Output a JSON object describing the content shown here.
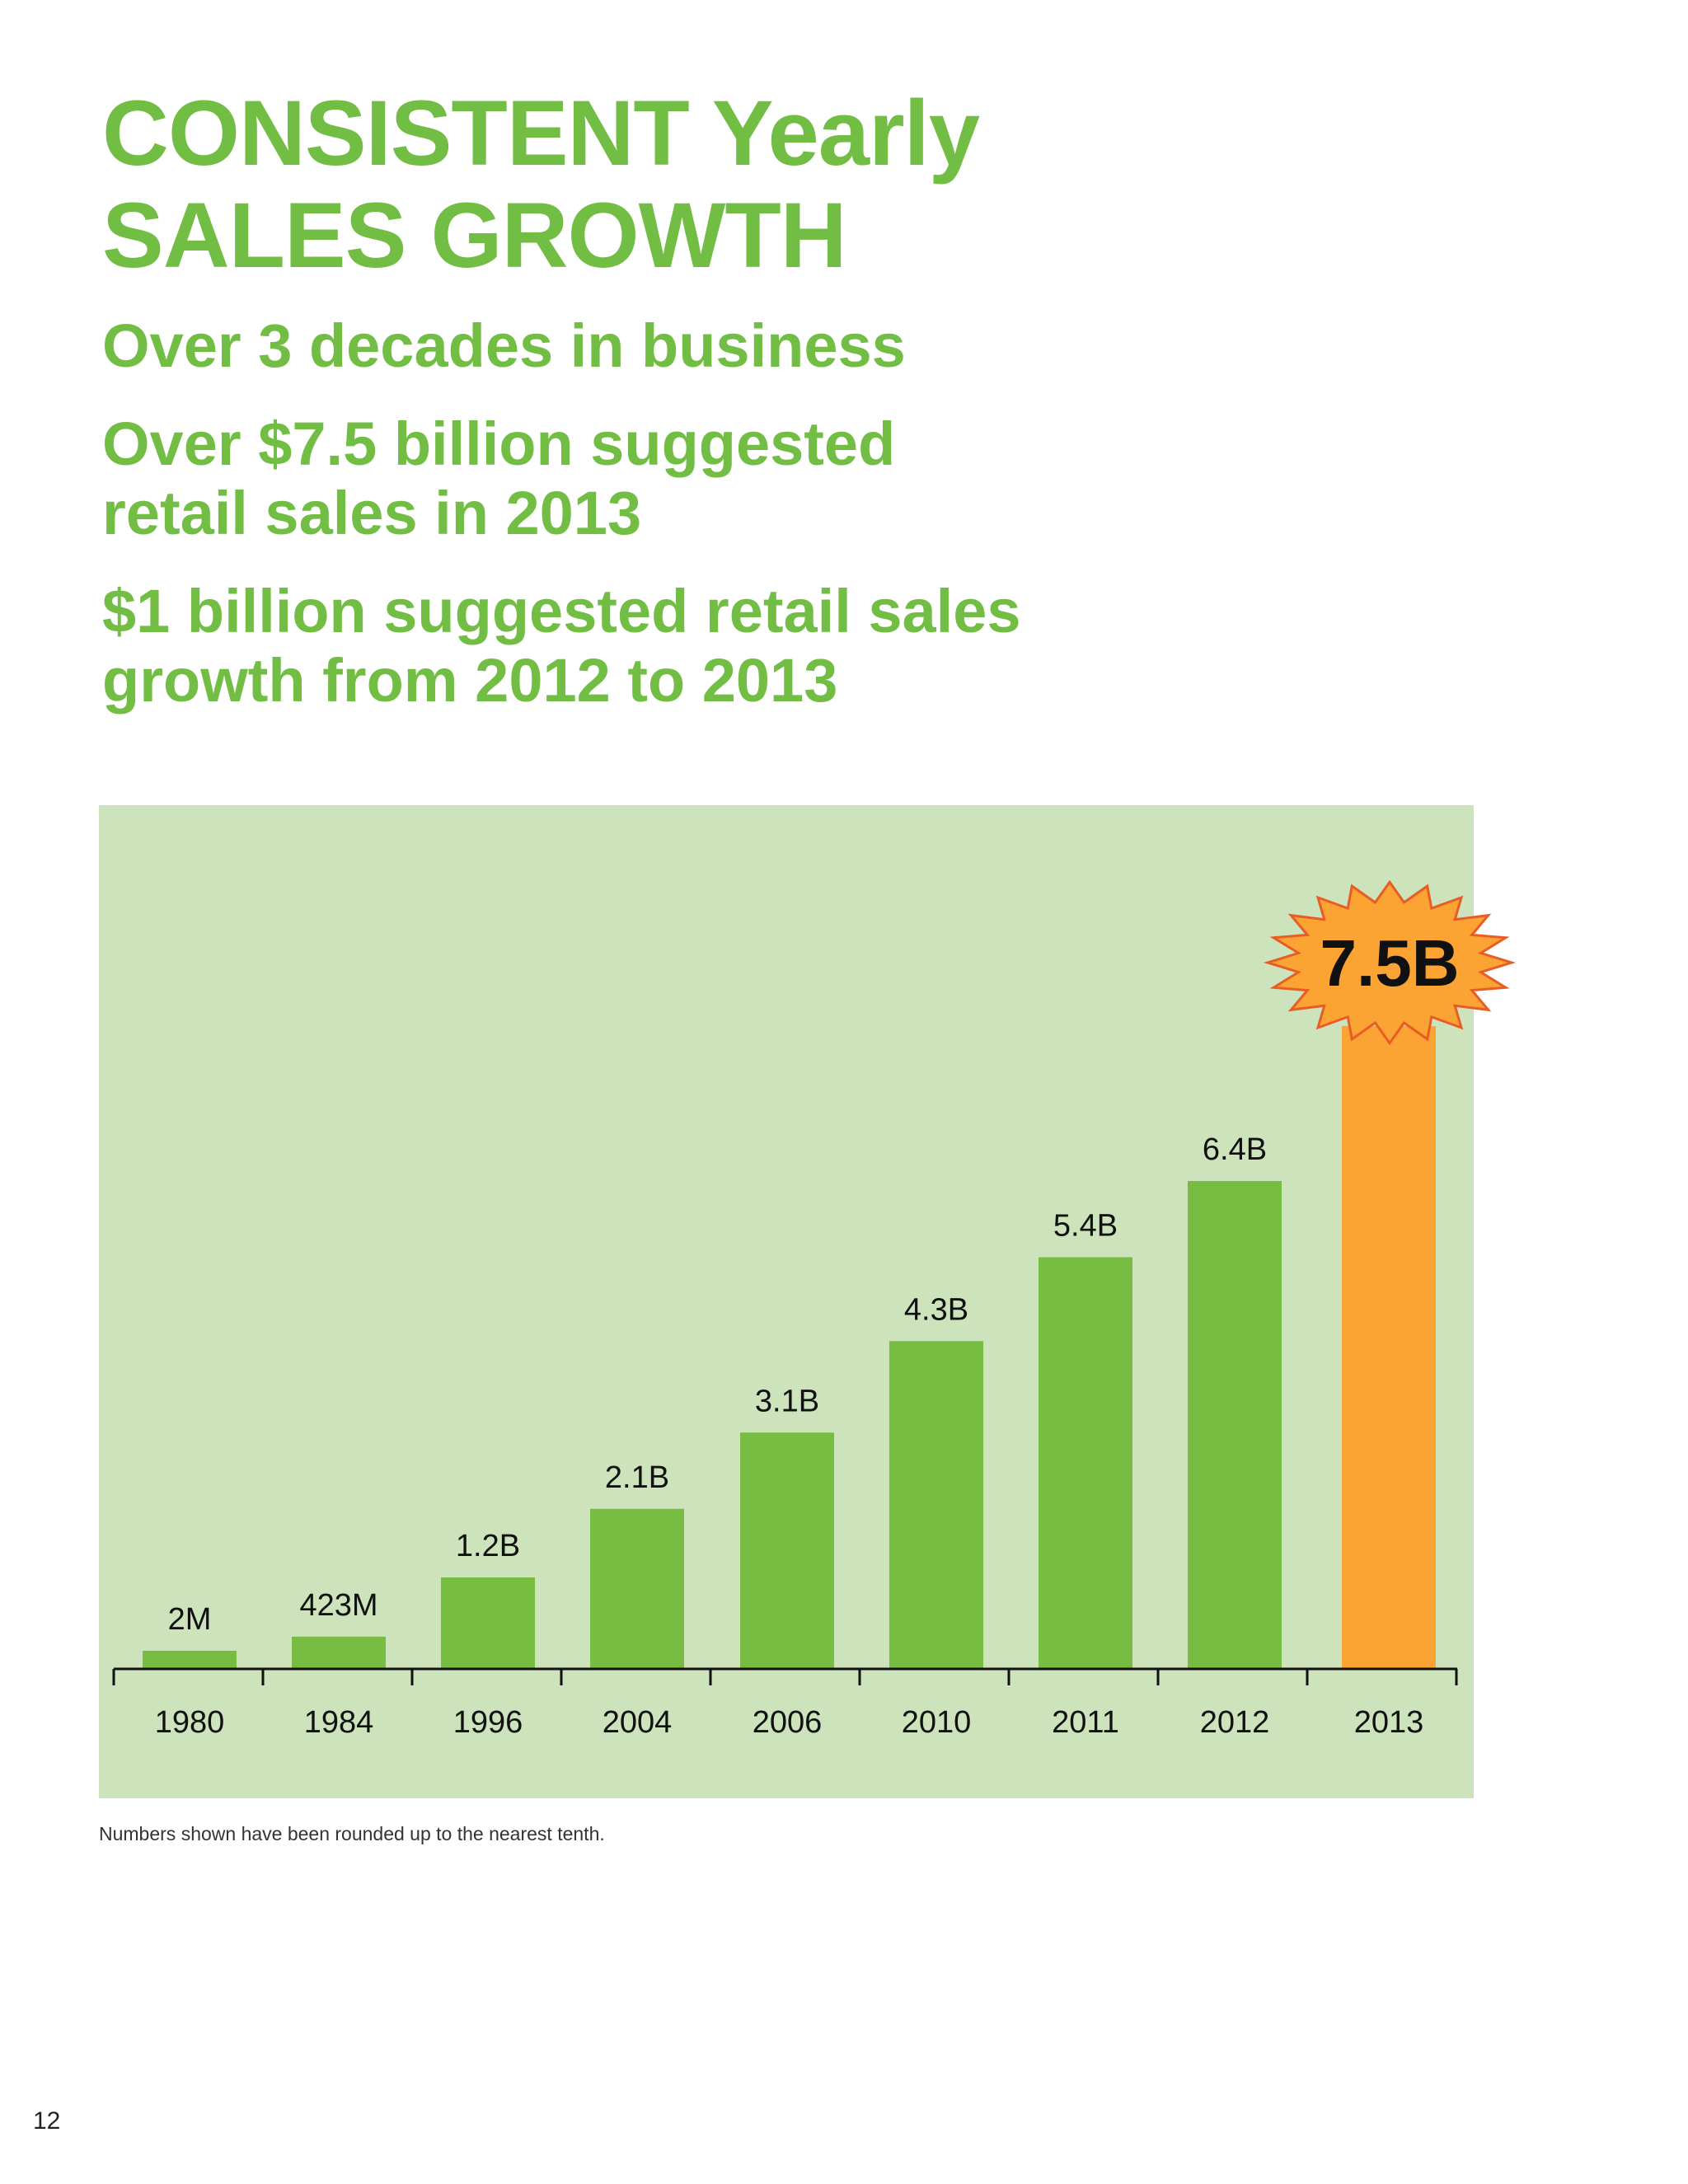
{
  "headline": {
    "line1": "CONSISTENT Yearly",
    "line2": "SALES GROWTH"
  },
  "subheads": [
    {
      "lines": [
        "Over 3 decades in business"
      ]
    },
    {
      "lines": [
        "Over $7.5 billion suggested",
        "retail sales in 2013"
      ]
    },
    {
      "lines": [
        "$1 billion suggested retail sales",
        "growth from 2012 to 2013"
      ]
    }
  ],
  "chart_data": {
    "type": "bar",
    "title": "",
    "xlabel": "",
    "ylabel": "",
    "grid": false,
    "legend": "none",
    "ylim": [
      0,
      7.5
    ],
    "units": "billion USD",
    "categories": [
      "1980",
      "1984",
      "1996",
      "2004",
      "2006",
      "2010",
      "2011",
      "2012",
      "2013"
    ],
    "values": [
      0.002,
      0.423,
      1.2,
      2.1,
      3.1,
      4.3,
      5.4,
      6.4,
      7.5
    ],
    "value_labels": [
      "2M",
      "423M",
      "1.2B",
      "2.1B",
      "3.1B",
      "4.3B",
      "5.4B",
      "6.4B",
      "7.5B"
    ],
    "highlight": {
      "category": "2013",
      "label": "7.5B",
      "badge": "starburst"
    }
  },
  "colors": {
    "brand_green": "#72bd44",
    "panel_background": "#cde3bb",
    "bar_green": "#76bd42",
    "highlight_orange": "#fba433",
    "starburst_fill": "#fba433",
    "starburst_stroke": "#e85c25",
    "text_dark": "#111111"
  },
  "footnote": "Numbers shown have been rounded up to the nearest tenth.",
  "page_number": "12"
}
